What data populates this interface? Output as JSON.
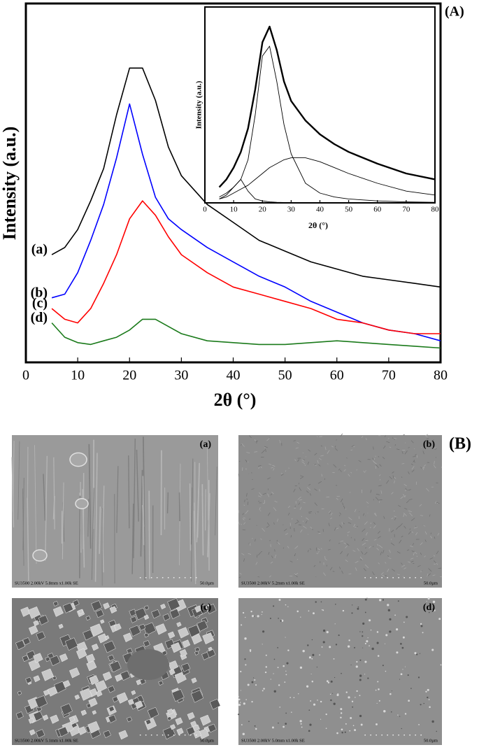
{
  "chart_data": [
    {
      "type": "line",
      "annotation": "(A)",
      "x_label": "2θ (°)",
      "y_label": "Intensity (a.u.)",
      "xlim": [
        0,
        80
      ],
      "xticks": [
        0,
        10,
        20,
        30,
        40,
        50,
        60,
        70,
        80
      ],
      "ylim": [
        0,
        100
      ],
      "x": [
        5,
        7.5,
        10,
        12.5,
        15,
        17.5,
        20,
        22.5,
        25,
        27.5,
        30,
        35,
        40,
        45,
        50,
        55,
        60,
        65,
        70,
        75,
        80
      ],
      "series": [
        {
          "name": "(a)",
          "color": "#000000",
          "values": [
            30,
            32,
            37,
            45,
            54,
            69,
            82,
            82,
            73,
            60,
            52,
            44,
            39,
            34,
            31,
            28,
            26,
            24,
            23,
            22,
            21
          ]
        },
        {
          "name": "(b)",
          "color": "#0000ff",
          "values": [
            18,
            19,
            25,
            34,
            44,
            57,
            72,
            58,
            46,
            40,
            37,
            32,
            28,
            24,
            21,
            17,
            14,
            11,
            9,
            8,
            6
          ]
        },
        {
          "name": "(c)",
          "color": "#ff0000",
          "values": [
            15,
            12,
            11,
            15,
            22,
            30,
            40,
            45,
            41,
            35,
            30,
            25,
            21,
            19,
            17,
            15,
            12,
            11,
            9,
            8,
            8
          ]
        },
        {
          "name": "(d)",
          "color": "#1a7a1a",
          "values": [
            11,
            7,
            5.5,
            5,
            6,
            7,
            9,
            12,
            12,
            10,
            8,
            6,
            5.5,
            5,
            5,
            5.5,
            6,
            5.5,
            5,
            4.5,
            4
          ]
        }
      ]
    },
    {
      "type": "line",
      "x_label": "2θ (°)",
      "y_label": "Intensity (a.u.)",
      "xlim": [
        0,
        80
      ],
      "xticks": [
        0,
        10,
        20,
        30,
        40,
        50,
        60,
        70,
        80
      ],
      "ylim": [
        0,
        100
      ],
      "x": [
        5,
        7.5,
        10,
        12.5,
        15,
        17.5,
        20,
        22.5,
        25,
        27.5,
        30,
        35,
        40,
        45,
        50,
        60,
        70,
        80
      ],
      "series": [
        {
          "color": "#000000",
          "values": [
            8,
            12,
            18,
            26,
            38,
            58,
            82,
            90,
            78,
            62,
            52,
            42,
            35,
            30,
            26,
            20,
            15,
            12
          ]
        },
        {
          "color": "#000000",
          "values": [
            2,
            4,
            8,
            12,
            22,
            45,
            75,
            80,
            62,
            40,
            25,
            10,
            5,
            3,
            2,
            1,
            0.5,
            0.3
          ]
        },
        {
          "color": "#000000",
          "values": [
            3,
            5,
            8,
            12,
            6,
            2,
            1,
            0.5,
            0.3,
            0.2,
            0.1,
            0,
            0,
            0,
            0,
            0,
            0,
            0
          ]
        },
        {
          "color": "#000000",
          "values": [
            2,
            3,
            5,
            7,
            9,
            12,
            15,
            18,
            20,
            22,
            23,
            23,
            21,
            18,
            15,
            10,
            6,
            4
          ]
        }
      ]
    }
  ],
  "sem": {
    "label": "(B)",
    "images": [
      {
        "label": "(a)",
        "info": "SU3500 2.00kV 5.8mm x1.00k SE",
        "scale": "50.0µm"
      },
      {
        "label": "(b)",
        "info": "SU3500 2.00kV 5.2mm x1.00k SE",
        "scale": "50.0µm"
      },
      {
        "label": "(c)",
        "info": "SU3500 2.00kV 5.1mm x1.00k SE",
        "scale": "50.0µm"
      },
      {
        "label": "(d)",
        "info": "SU3500 2.00kV 5.0mm x1.00k SE",
        "scale": "50.0µm"
      }
    ]
  }
}
